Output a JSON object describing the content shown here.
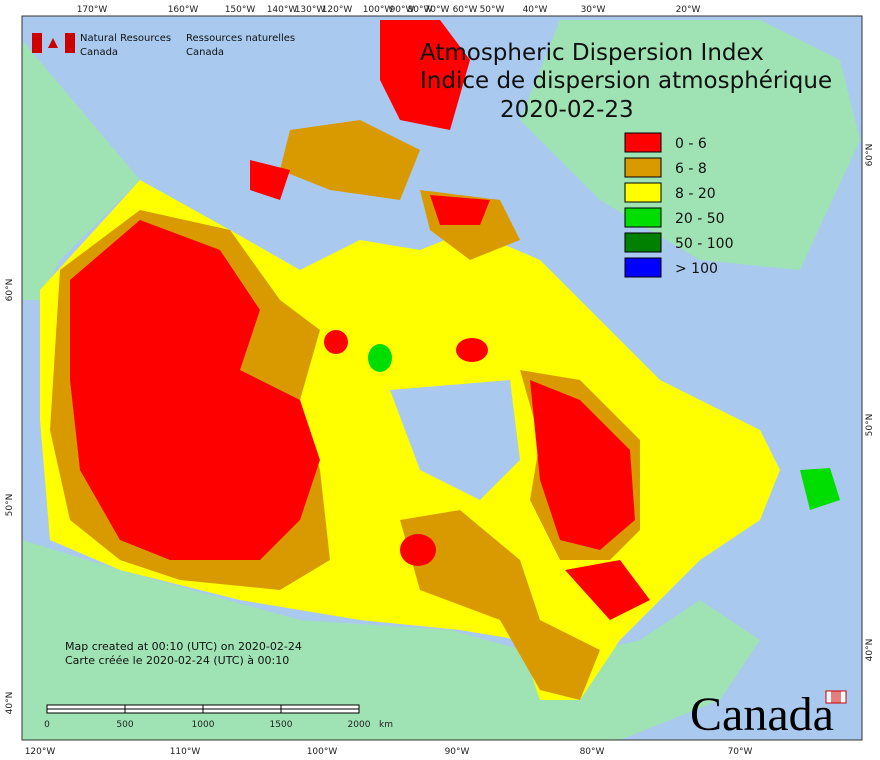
{
  "header": {
    "title_en": "Atmospheric Dispersion Index",
    "title_fr": "Indice de dispersion atmosphérique",
    "date": "2020-02-23"
  },
  "agency": {
    "en": [
      "Natural Resources",
      "Canada"
    ],
    "fr": [
      "Ressources naturelles",
      "Canada"
    ]
  },
  "legend": [
    {
      "label": "0 - 6",
      "color": "#ff0000"
    },
    {
      "label": "6 - 8",
      "color": "#d99a00"
    },
    {
      "label": "8 - 20",
      "color": "#ffff00"
    },
    {
      "label": "20 - 50",
      "color": "#00dd00"
    },
    {
      "label": "50 - 100",
      "color": "#008000"
    },
    {
      "label": "> 100",
      "color": "#0000ff"
    }
  ],
  "notes": [
    "Map created at 00:10 (UTC) on 2020-02-24",
    "Carte créée le 2020-02-24 (UTC) à 00:10"
  ],
  "top_labels": [
    "170°W",
    "160°W",
    "150°W",
    "140°W",
    "130°W",
    "120°W",
    "100°W",
    "90°W",
    "80°W",
    "70°W",
    "60°W",
    "50°W",
    "40°W",
    "30°W",
    "20°W"
  ],
  "bottom_labels": [
    "120°W",
    "110°W",
    "100°W",
    "90°W",
    "80°W",
    "70°W"
  ],
  "left_labels": [
    "60°N",
    "50°N",
    "40°N"
  ],
  "right_labels": [
    "60°N",
    "50°N",
    "40°N"
  ],
  "scale": {
    "ticks": [
      "0",
      "500",
      "1000",
      "1500",
      "2000"
    ],
    "unit": "km"
  },
  "wordmark": "Canada"
}
